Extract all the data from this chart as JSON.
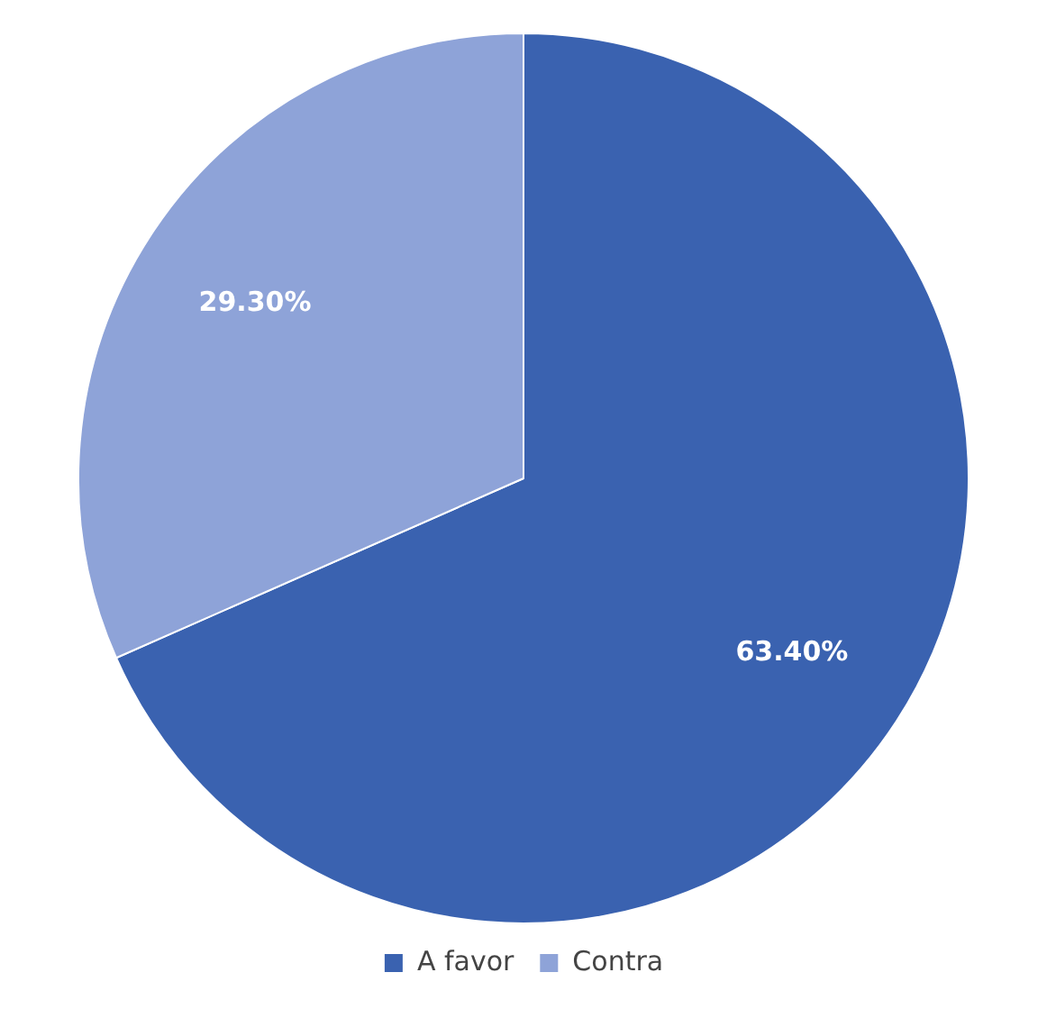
{
  "chart_data": {
    "type": "pie",
    "categories": [
      "A favor",
      "Contra"
    ],
    "values": [
      63.4,
      29.3
    ],
    "colors": [
      "#3a62b0",
      "#8ea3d8"
    ],
    "value_labels": [
      "63.40%",
      "29.30%"
    ],
    "legend": "bottom"
  }
}
